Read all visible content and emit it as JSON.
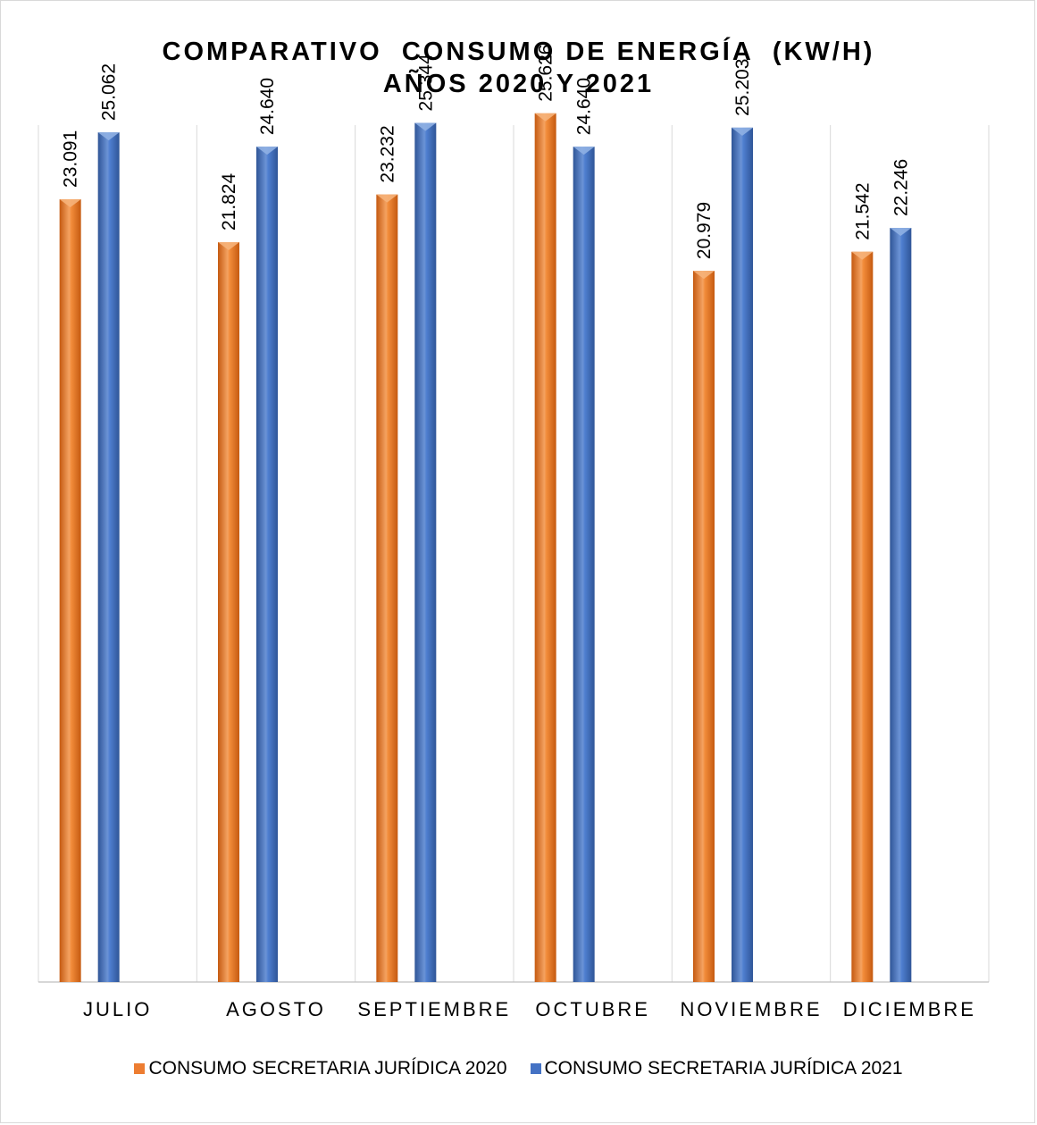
{
  "chart_data": {
    "type": "bar",
    "title_lines": [
      "COMPARATIVO  CONSUMO DE ENERGÍA  (KW/H)",
      "AÑOS 2020 Y 2021"
    ],
    "categories": [
      "JULIO",
      "AGOSTO",
      "SEPTIEMBRE",
      "OCTUBRE",
      "NOVIEMBRE",
      "DICIEMBRE"
    ],
    "series": [
      {
        "name": "CONSUMO SECRETARIA JURÍDICA 2020",
        "color": "#ED7D31",
        "values": [
          23.091,
          21.824,
          23.232,
          25.626,
          20.979,
          21.542
        ],
        "labels": [
          "23.091",
          "21.824",
          "23.232",
          "25.626",
          "20.979",
          "21.542"
        ]
      },
      {
        "name": "CONSUMO SECRETARIA JURÍDICA 2021",
        "color": "#4472C4",
        "values": [
          25.062,
          24.64,
          25.344,
          24.64,
          25.203,
          22.246
        ],
        "labels": [
          "25.062",
          "24.640",
          "25.344",
          "24.640",
          "25.203",
          "22.246"
        ]
      }
    ],
    "ylim": [
      0,
      26.2
    ],
    "gridlines": "vertical category separators",
    "legend_position": "bottom",
    "data_labels": "rotated vertical above bars"
  }
}
